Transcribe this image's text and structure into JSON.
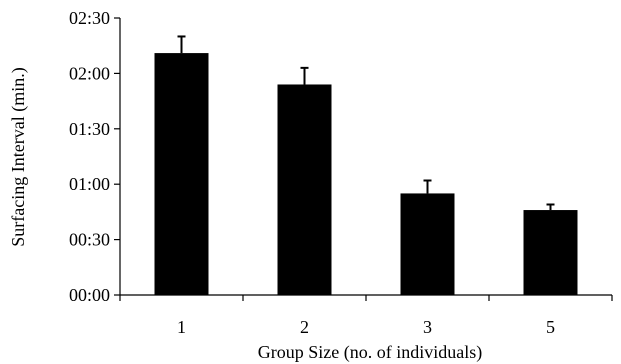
{
  "chart_data": {
    "type": "bar",
    "title": "",
    "xlabel": "Group Size (no. of individuals)",
    "ylabel": "Surfacing Interval (min.)",
    "categories": [
      "1",
      "2",
      "3",
      "5"
    ],
    "values_seconds": [
      131,
      114,
      55,
      46
    ],
    "error_seconds": [
      9,
      9,
      7,
      3
    ],
    "ylim_seconds": [
      0,
      150
    ],
    "yticks": [
      "00:00",
      "00:30",
      "01:00",
      "01:30",
      "02:00",
      "02:30"
    ],
    "grid": false,
    "legend": "none",
    "bar_color": "#000000"
  }
}
